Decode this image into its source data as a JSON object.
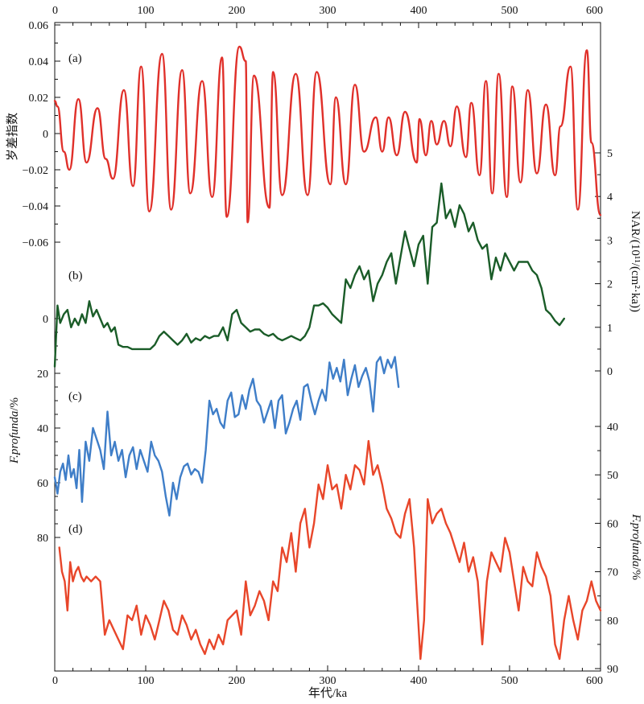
{
  "chart_data": {
    "type": "line",
    "x_axis": {
      "label": "年代/ka",
      "range": [
        0,
        600
      ],
      "ticks": [
        0,
        100,
        200,
        300,
        400,
        500,
        600
      ],
      "labels_top_and_bottom": true
    },
    "panels": [
      {
        "id": "a",
        "label": "(a)",
        "color": "#e0302a",
        "y_axis": {
          "side": "left",
          "label": "岁差指数",
          "range": [
            -0.07,
            0.06
          ],
          "ticks": [
            0.06,
            0.04,
            0.02,
            0,
            -0.02,
            -0.04,
            -0.06
          ],
          "tick_labels": [
            "0.06",
            "0.04",
            "0.02",
            "0",
            "−0.02",
            "−0.04",
            "−0.06"
          ]
        },
        "series": [
          {
            "x": [
              0,
              3,
              10,
              16,
              26,
              35,
              47,
              56,
              64,
              76,
              86,
              95,
              104,
              118,
              128,
              140,
              149,
              162,
              173,
              184,
              189,
              203,
              210,
              212,
              219,
              236,
              240,
              250,
              265,
              278,
              288,
              303,
              309,
              320,
              330,
              340,
              353,
              360,
              367,
              376,
              385,
              398,
              401,
              408,
              414,
              420,
              428,
              435,
              442,
              452,
              458,
              467,
              474,
              481,
              488,
              497,
              503,
              512,
              520,
              530,
              540,
              550,
              556,
              567,
              575,
              585,
              590,
              600
            ],
            "y": [
              0.018,
              0.015,
              -0.01,
              -0.02,
              0.019,
              -0.016,
              0.014,
              -0.014,
              -0.025,
              0.024,
              -0.029,
              0.037,
              -0.043,
              0.044,
              -0.042,
              0.035,
              -0.033,
              0.029,
              -0.035,
              0.042,
              -0.046,
              0.048,
              0.04,
              -0.049,
              0.032,
              -0.041,
              0.034,
              -0.034,
              0.033,
              -0.034,
              0.034,
              -0.028,
              0.02,
              -0.028,
              0.027,
              -0.01,
              0.009,
              -0.01,
              0.009,
              -0.012,
              0.012,
              -0.016,
              0.008,
              -0.012,
              0.007,
              -0.006,
              0.007,
              -0.007,
              0.015,
              -0.013,
              0.017,
              -0.023,
              0.029,
              -0.033,
              0.033,
              -0.035,
              0.026,
              -0.027,
              0.024,
              -0.022,
              0.016,
              -0.023,
              0.004,
              0.037,
              -0.042,
              0.046,
              -0.005,
              -0.045
            ]
          }
        ]
      },
      {
        "id": "b",
        "label": "(b)",
        "color": "#1a5c28",
        "y_axis": {
          "side": "right",
          "label": "NAR/(10¹¹/(cm²·ka))",
          "range": [
            0,
            5.5
          ],
          "ticks": [
            0,
            1,
            2,
            3,
            4,
            5
          ],
          "tick_labels": [
            "0",
            "1",
            "2",
            "3",
            "4",
            "5"
          ]
        },
        "series": [
          {
            "x": [
              0,
              3,
              6,
              10,
              14,
              18,
              22,
              26,
              30,
              34,
              38,
              42,
              46,
              50,
              54,
              58,
              62,
              66,
              70,
              75,
              80,
              85,
              90,
              95,
              100,
              105,
              110,
              115,
              120,
              125,
              130,
              135,
              140,
              145,
              150,
              155,
              160,
              165,
              170,
              175,
              180,
              185,
              190,
              195,
              200,
              205,
              210,
              215,
              220,
              225,
              230,
              235,
              240,
              245,
              250,
              255,
              260,
              265,
              270,
              275,
              280,
              285,
              290,
              295,
              300,
              305,
              310,
              315,
              320,
              325,
              330,
              335,
              340,
              345,
              350,
              355,
              360,
              365,
              370,
              375,
              380,
              385,
              390,
              395,
              400,
              405,
              410,
              415,
              420,
              425,
              430,
              435,
              440,
              445,
              450,
              455,
              460,
              465,
              470,
              475,
              480,
              485,
              490,
              495,
              500,
              505,
              510,
              515,
              520,
              525,
              530,
              535,
              540,
              545,
              550,
              555,
              560
            ],
            "y": [
              0.1,
              1.5,
              1.1,
              1.3,
              1.4,
              1.0,
              1.2,
              1.05,
              1.3,
              1.1,
              1.6,
              1.25,
              1.4,
              1.2,
              1.0,
              1.1,
              0.9,
              1.0,
              0.6,
              0.55,
              0.55,
              0.5,
              0.5,
              0.5,
              0.5,
              0.5,
              0.6,
              0.8,
              0.9,
              0.8,
              0.7,
              0.6,
              0.7,
              0.85,
              0.65,
              0.75,
              0.7,
              0.8,
              0.75,
              0.8,
              0.8,
              1.0,
              0.7,
              1.3,
              1.4,
              1.1,
              1.0,
              0.9,
              0.95,
              0.95,
              0.85,
              0.8,
              0.85,
              0.75,
              0.7,
              0.75,
              0.8,
              0.75,
              0.7,
              0.8,
              1.0,
              1.5,
              1.5,
              1.55,
              1.45,
              1.3,
              1.2,
              1.1,
              2.1,
              1.9,
              2.2,
              2.4,
              2.1,
              2.3,
              1.6,
              2.0,
              2.2,
              2.5,
              2.7,
              2.0,
              2.6,
              3.2,
              2.8,
              2.4,
              2.9,
              3.1,
              2.0,
              3.3,
              3.4,
              4.3,
              3.5,
              3.7,
              3.3,
              3.8,
              3.6,
              3.2,
              3.4,
              3.0,
              2.8,
              2.9,
              2.1,
              2.6,
              2.3,
              2.7,
              2.5,
              2.3,
              2.5,
              2.5,
              2.5,
              2.3,
              2.2,
              1.9,
              1.4,
              1.3,
              1.15,
              1.05,
              1.2
            ]
          }
        ]
      },
      {
        "id": "c",
        "label": "(c)",
        "color": "#3f7ec8",
        "y_axis": {
          "side": "left",
          "label": "F.profunda/%",
          "range": [
            0,
            100
          ],
          "ticks": [
            0,
            20,
            40,
            60,
            80
          ],
          "tick_labels": [
            "0",
            "20",
            "40",
            "60",
            "80"
          ]
        },
        "series": [
          {
            "x": [
              0,
              3,
              6,
              9,
              12,
              15,
              18,
              21,
              24,
              27,
              30,
              34,
              38,
              42,
              46,
              50,
              54,
              58,
              62,
              66,
              70,
              74,
              78,
              82,
              86,
              90,
              94,
              98,
              102,
              106,
              110,
              114,
              118,
              122,
              126,
              130,
              134,
              138,
              142,
              146,
              150,
              154,
              158,
              162,
              166,
              170,
              174,
              178,
              182,
              186,
              190,
              194,
              198,
              202,
              206,
              210,
              214,
              218,
              222,
              226,
              230,
              234,
              238,
              242,
              246,
              250,
              254,
              258,
              262,
              266,
              270,
              274,
              278,
              282,
              286,
              290,
              294,
              298,
              302,
              306,
              310,
              314,
              318,
              322,
              326,
              330,
              334,
              338,
              342,
              346,
              350,
              354,
              358,
              362,
              366,
              370,
              374,
              378
            ],
            "y": [
              58,
              64,
              56,
              53,
              59,
              50,
              58,
              55,
              62,
              48,
              67,
              45,
              52,
              40,
              44,
              48,
              55,
              34,
              50,
              45,
              52,
              48,
              58,
              50,
              47,
              55,
              48,
              52,
              56,
              45,
              50,
              52,
              56,
              65,
              72,
              60,
              66,
              58,
              54,
              53,
              57,
              55,
              56,
              60,
              48,
              30,
              35,
              33,
              38,
              40,
              30,
              27,
              36,
              35,
              28,
              33,
              26,
              22,
              30,
              32,
              38,
              34,
              30,
              40,
              30,
              28,
              42,
              38,
              33,
              30,
              37,
              25,
              24,
              30,
              35,
              30,
              26,
              30,
              16,
              22,
              18,
              23,
              15,
              28,
              22,
              17,
              25,
              21,
              18,
              23,
              34,
              16,
              14,
              20,
              15,
              18,
              14,
              25
            ]
          }
        ]
      },
      {
        "id": "d",
        "label": "(d)",
        "color": "#e8462a",
        "y_axis": {
          "side": "right",
          "label": "F.profunda/%",
          "range": [
            30,
            95
          ],
          "ticks": [
            40,
            50,
            60,
            70,
            80,
            90
          ],
          "tick_labels": [
            "40",
            "50",
            "60",
            "70",
            "80",
            "90"
          ]
        },
        "series": [
          {
            "x": [
              5,
              8,
              11,
              14,
              17,
              20,
              23,
              26,
              29,
              32,
              35,
              40,
              45,
              50,
              55,
              60,
              65,
              70,
              75,
              80,
              85,
              90,
              95,
              100,
              105,
              110,
              115,
              120,
              125,
              130,
              135,
              140,
              145,
              150,
              155,
              160,
              165,
              170,
              175,
              180,
              185,
              190,
              195,
              200,
              205,
              210,
              215,
              220,
              225,
              230,
              235,
              240,
              245,
              250,
              255,
              260,
              265,
              270,
              275,
              280,
              285,
              290,
              295,
              300,
              305,
              310,
              315,
              320,
              325,
              330,
              335,
              340,
              345,
              350,
              355,
              360,
              365,
              370,
              375,
              380,
              385,
              390,
              395,
              398,
              402,
              406,
              410,
              415,
              420,
              425,
              430,
              435,
              440,
              445,
              450,
              455,
              460,
              465,
              470,
              475,
              480,
              485,
              490,
              495,
              500,
              505,
              510,
              515,
              520,
              525,
              530,
              535,
              540,
              545,
              550,
              555,
              560,
              565,
              570,
              575,
              580,
              585,
              590,
              595,
              600
            ],
            "y": [
              65,
              70,
              72,
              78,
              68,
              72,
              70,
              69,
              71,
              72,
              71,
              72,
              71,
              72,
              83,
              80,
              82,
              84,
              86,
              79,
              80,
              77,
              83,
              79,
              81,
              84,
              80,
              76,
              78,
              82,
              83,
              79,
              81,
              84,
              82,
              85,
              87,
              84,
              86,
              83,
              85,
              80,
              79,
              78,
              83,
              72,
              79,
              77,
              74,
              76,
              80,
              72,
              74,
              65,
              68,
              62,
              70,
              60,
              57,
              65,
              60,
              52,
              55,
              48,
              53,
              52,
              57,
              50,
              53,
              48,
              49,
              52,
              43,
              50,
              48,
              52,
              57,
              59,
              62,
              63,
              58,
              55,
              65,
              75,
              88,
              80,
              55,
              60,
              58,
              57,
              60,
              62,
              65,
              68,
              64,
              70,
              67,
              72,
              85,
              72,
              66,
              68,
              70,
              63,
              66,
              72,
              78,
              69,
              72,
              73,
              66,
              69,
              71,
              75,
              85,
              88,
              80,
              75,
              80,
              84,
              78,
              76,
              72,
              76,
              78
            ]
          }
        ]
      }
    ]
  }
}
